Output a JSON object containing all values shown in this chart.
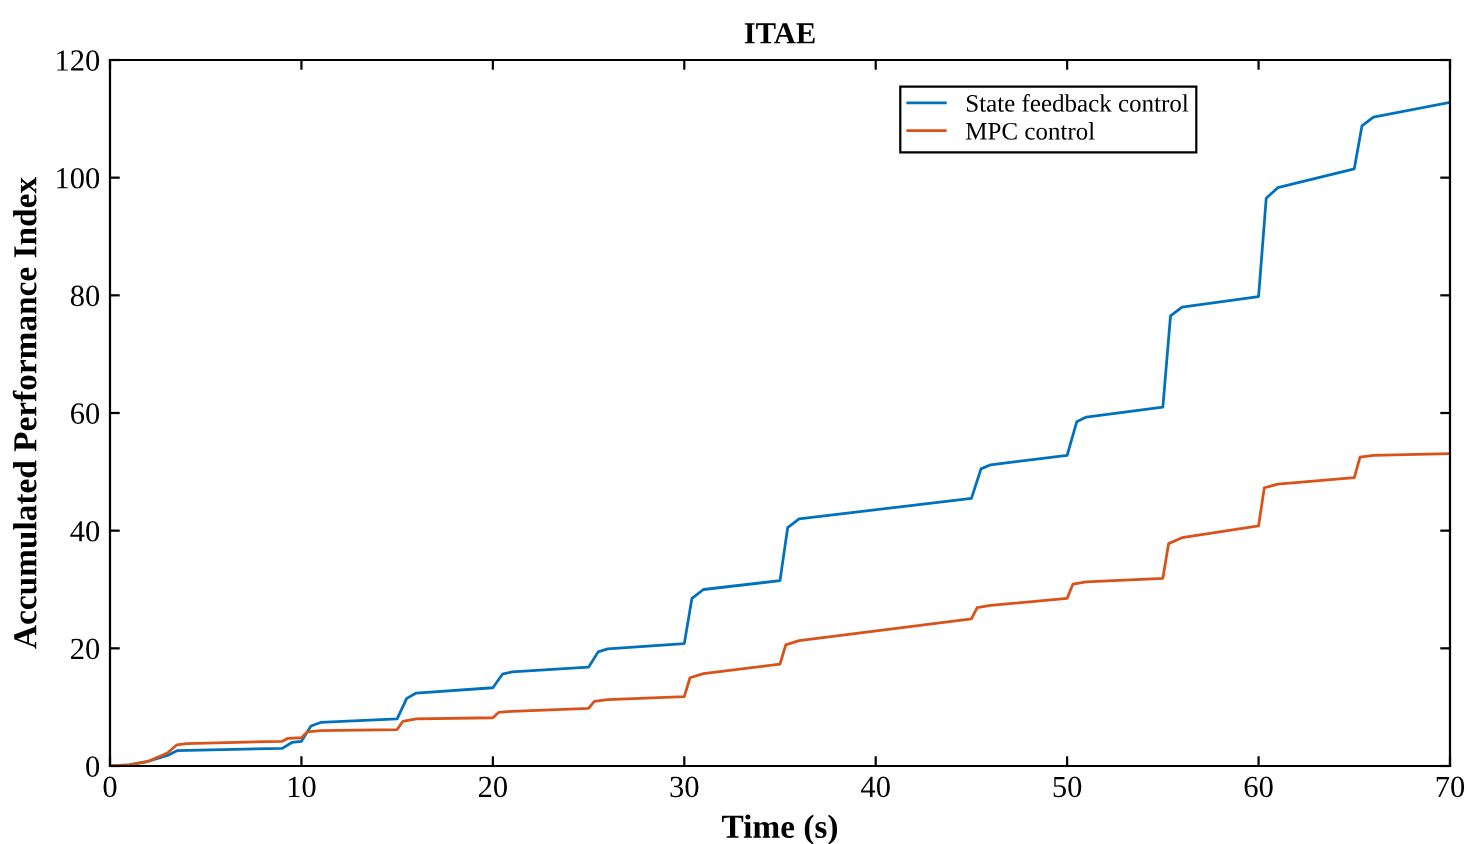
{
  "chart_data": {
    "type": "line",
    "title": "ITAE",
    "xlabel": "Time (s)",
    "ylabel": "Accumulated Performance Index",
    "xlim": [
      0,
      70
    ],
    "ylim": [
      0,
      120
    ],
    "xticks": [
      0,
      10,
      20,
      30,
      40,
      50,
      60,
      70
    ],
    "yticks": [
      0,
      20,
      40,
      60,
      80,
      100,
      120
    ],
    "grid": false,
    "legend": "top right",
    "marker": "none",
    "line_style": "solid",
    "series": [
      {
        "name": "State feedback control",
        "color": "#0072bd",
        "x": [
          0,
          1,
          2,
          3,
          3.5,
          9,
          9.5,
          10,
          10.5,
          11,
          15,
          15.5,
          16,
          20,
          20.5,
          21,
          25,
          25.5,
          26,
          30,
          30.4,
          31,
          35,
          35.4,
          36,
          45,
          45.5,
          46,
          50,
          50.5,
          51,
          55,
          55.4,
          56,
          60,
          60.4,
          61,
          65,
          65.4,
          66,
          70
        ],
        "values": [
          0,
          0.2,
          0.8,
          1.8,
          2.6,
          3.0,
          4.0,
          4.2,
          6.8,
          7.4,
          8.0,
          11.5,
          12.4,
          13.3,
          15.6,
          16.0,
          16.8,
          19.4,
          19.9,
          20.8,
          28.5,
          30.0,
          31.5,
          40.5,
          42.0,
          45.5,
          50.5,
          51.2,
          52.8,
          58.5,
          59.3,
          61.0,
          76.5,
          78.0,
          79.8,
          96.5,
          98.3,
          101.5,
          108.8,
          110.3,
          112.8
        ]
      },
      {
        "name": "MPC control",
        "color": "#d95319",
        "x": [
          0,
          1,
          2,
          3,
          3.5,
          4,
          9,
          9.3,
          10,
          10.3,
          11,
          15,
          15.3,
          16,
          20,
          20.3,
          21,
          25,
          25.3,
          26,
          30,
          30.3,
          31,
          35,
          35.3,
          36,
          45,
          45.3,
          46,
          50,
          50.3,
          51,
          55,
          55.3,
          56,
          60,
          60.3,
          61,
          65,
          65.3,
          66,
          70
        ],
        "values": [
          0,
          0.2,
          0.8,
          2.2,
          3.6,
          3.8,
          4.2,
          4.7,
          4.8,
          5.8,
          6.0,
          6.2,
          7.6,
          8.0,
          8.2,
          9.1,
          9.3,
          9.8,
          11.0,
          11.3,
          11.8,
          15.0,
          15.7,
          17.3,
          20.6,
          21.3,
          25.0,
          26.9,
          27.3,
          28.5,
          30.9,
          31.3,
          31.9,
          37.8,
          38.8,
          40.8,
          47.3,
          47.9,
          49.0,
          52.5,
          52.8,
          53.1
        ]
      }
    ]
  }
}
